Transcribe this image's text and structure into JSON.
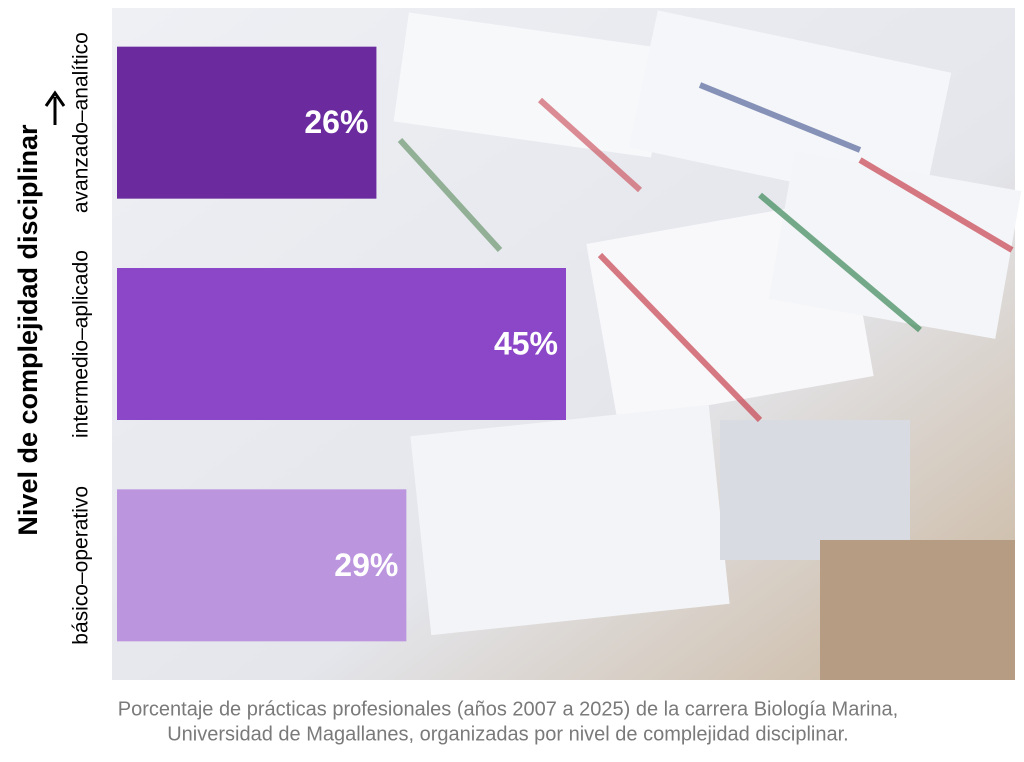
{
  "chart_data": {
    "type": "bar",
    "orientation": "horizontal",
    "y_label": "Nivel de complejidad disciplinar",
    "categories": [
      "básico–operativo",
      "intermedio–aplicado",
      "avanzado–analítico"
    ],
    "values": [
      29,
      45,
      26
    ],
    "value_labels": [
      "29%",
      "45%",
      "26%"
    ],
    "colors": [
      "#bb95de",
      "#8c47c8",
      "#6b2b9f"
    ],
    "xlim": [
      0,
      90
    ],
    "caption": [
      "Porcentaje de prácticas profesionales (años 2007 a 2025) de la carrera Biología Marina,",
      "Universidad de Magallanes, organizadas por nivel de complejidad disciplinar."
    ]
  }
}
